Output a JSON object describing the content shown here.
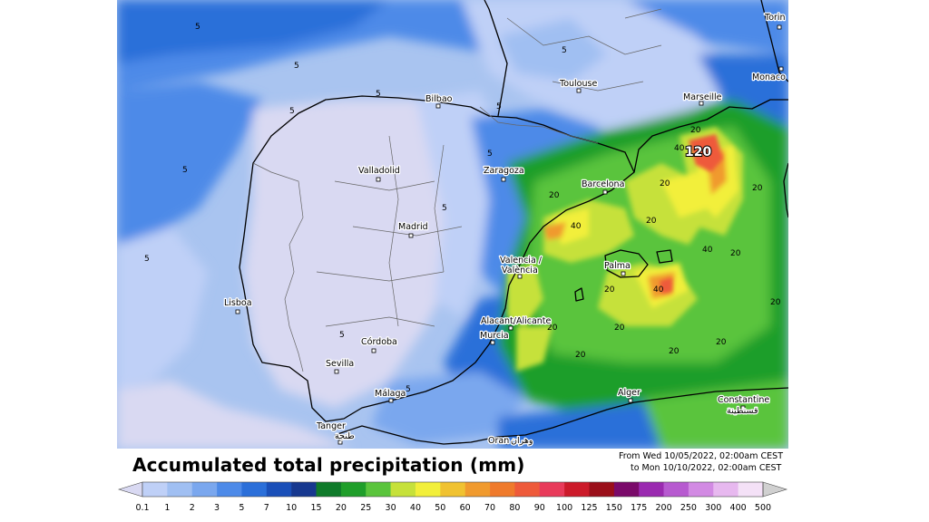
{
  "map": {
    "cities": [
      {
        "name": "Toulouse"
      },
      {
        "name": "Bilbao"
      },
      {
        "name": "Marseille"
      },
      {
        "name": "Monaco"
      },
      {
        "name": "Torin"
      },
      {
        "name": "Valladolid"
      },
      {
        "name": "Zaragoza"
      },
      {
        "name": "Barcelona"
      },
      {
        "name": "Madrid"
      },
      {
        "name": "Valencia /"
      },
      {
        "name": "València"
      },
      {
        "name": "Palma"
      },
      {
        "name": "Lisboa"
      },
      {
        "name": "Alacant/Alicante"
      },
      {
        "name": "Murcia"
      },
      {
        "name": "Córdoba"
      },
      {
        "name": "Sevilla"
      },
      {
        "name": "Málaga"
      },
      {
        "name": "Tanger"
      },
      {
        "name": "طنجة"
      },
      {
        "name": "Oran"
      },
      {
        "name": "وهران"
      },
      {
        "name": "Alger"
      },
      {
        "name": "Constantine"
      },
      {
        "name": "قسنطينة"
      }
    ],
    "contour_labels": [
      "5",
      "5",
      "5",
      "5",
      "5",
      "5",
      "5",
      "5",
      "5",
      "5",
      "5",
      "5",
      "20",
      "20",
      "20",
      "20",
      "20",
      "20",
      "20",
      "20",
      "20",
      "20",
      "20",
      "20",
      "20",
      "40",
      "40",
      "40",
      "40"
    ],
    "peak_label": "120"
  },
  "footer": {
    "title": "Accumulated total precipitation (mm)",
    "period_from": "From Wed 10/05/2022, 02:00am CEST",
    "period_to": "to Mon 10/10/2022, 02:00am CEST"
  },
  "legend": {
    "ticks": [
      "0.1",
      "1",
      "2",
      "3",
      "5",
      "7",
      "10",
      "15",
      "20",
      "25",
      "30",
      "40",
      "50",
      "60",
      "70",
      "80",
      "90",
      "100",
      "125",
      "150",
      "175",
      "200",
      "250",
      "300",
      "400",
      "500"
    ],
    "colors": [
      "#d9d9f2",
      "#bfd0f7",
      "#a0bff2",
      "#7aa7ee",
      "#4d8ae8",
      "#2b6fd9",
      "#1a4fb8",
      "#17388f",
      "#0f7a2a",
      "#1f9e2a",
      "#5ac43c",
      "#c6e13a",
      "#f2ef3a",
      "#f0c231",
      "#f09a2e",
      "#ef7a2c",
      "#ee5a3a",
      "#e83a5a",
      "#cc1a2a",
      "#9a0f1a",
      "#7a0a6a",
      "#9a2ab0",
      "#b75ad0",
      "#d28ae3",
      "#e7b8ef",
      "#f4e1f7",
      "#d0d0d0"
    ]
  }
}
